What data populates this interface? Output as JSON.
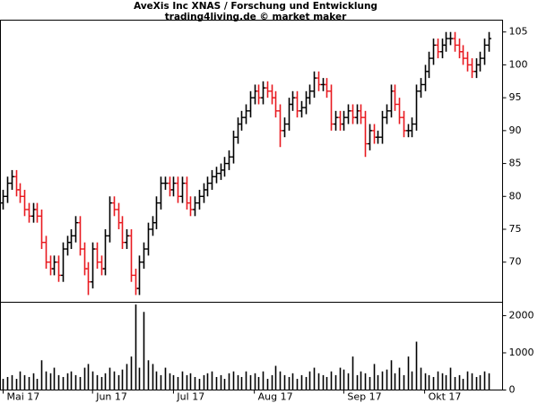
{
  "chart_data": [
    {
      "type": "ohlc",
      "title": "AveXis Inc XNAS / Forschung und Entwicklung",
      "subtitle": "trading4living.de © market maker",
      "up_color": "#000000",
      "down_color": "#e8191f",
      "xlim": [
        -0.63,
        117.3
      ],
      "ylim": [
        63.9,
        106.8
      ],
      "yticks": [
        70,
        75,
        80,
        85,
        90,
        95,
        100,
        105
      ],
      "open": [
        79,
        80,
        82,
        83,
        81,
        80,
        78,
        77,
        78,
        77,
        73,
        70,
        69,
        70,
        68,
        72,
        73,
        74,
        76,
        72,
        69,
        67,
        72,
        70,
        69,
        74,
        79,
        78,
        76,
        73,
        74,
        68,
        66,
        70,
        72,
        75,
        76,
        79,
        82,
        82,
        81,
        82,
        80,
        82,
        79,
        78,
        79,
        80,
        81,
        82,
        83,
        83.5,
        84,
        85,
        86,
        89,
        91,
        92,
        93,
        95,
        96,
        95,
        96.5,
        96,
        95,
        93,
        90,
        91,
        94,
        95,
        93,
        93.5,
        95,
        96,
        98,
        97,
        97,
        96,
        91,
        92,
        91,
        92,
        93,
        92,
        93,
        92,
        88,
        90,
        89,
        89,
        92,
        93,
        96,
        94,
        92,
        90,
        90,
        91,
        96,
        97,
        99,
        101,
        103,
        102,
        103,
        104,
        104,
        103,
        102,
        101,
        100,
        99,
        100,
        101,
        103
      ],
      "high": [
        81,
        83,
        84,
        84,
        82,
        81,
        79,
        79,
        79,
        78,
        74,
        71,
        71,
        71,
        73,
        74,
        75,
        77,
        77,
        73,
        70,
        73,
        73,
        71,
        75,
        80,
        80,
        79,
        77,
        75,
        75,
        69,
        71,
        73,
        76,
        77,
        80,
        83,
        83,
        83,
        83,
        83,
        83,
        83,
        80,
        80,
        81,
        82,
        83,
        84,
        84.5,
        85,
        86,
        87,
        90,
        92,
        93,
        94,
        96,
        97,
        97,
        97.5,
        97.5,
        97,
        96,
        94,
        92,
        95,
        96,
        96,
        94.5,
        96,
        97,
        99,
        99,
        98,
        98,
        97,
        93,
        93,
        93,
        94,
        94,
        94,
        94,
        93,
        91,
        91,
        90,
        93,
        94,
        97,
        97,
        95,
        93,
        91,
        92,
        97,
        98,
        100,
        102,
        104,
        104,
        104,
        105,
        105,
        105,
        104,
        103,
        102,
        101,
        101,
        102,
        104,
        105
      ],
      "low": [
        78,
        79,
        81,
        80,
        79,
        77,
        76,
        76,
        76,
        72,
        69,
        68,
        68,
        67,
        67,
        71,
        72,
        73,
        71,
        68,
        65,
        66,
        69,
        68,
        68,
        73,
        77,
        75,
        72,
        72,
        67,
        65,
        65,
        69,
        71,
        74,
        75,
        78,
        81,
        80,
        80,
        79,
        79,
        78,
        77,
        77,
        78,
        79,
        80,
        81,
        82,
        82.5,
        83,
        84,
        85,
        88,
        90,
        91,
        92,
        94,
        94,
        94,
        95,
        94,
        92,
        87.5,
        89,
        90,
        93,
        92,
        92,
        92.5,
        94,
        95,
        96,
        96,
        95,
        90,
        90,
        90,
        90,
        91,
        91,
        91,
        91,
        86,
        87,
        88,
        88,
        88,
        91,
        92,
        93,
        91,
        89,
        89,
        89,
        90,
        95,
        96,
        98,
        100,
        101,
        101,
        102,
        103,
        102,
        101,
        100,
        99,
        98,
        98,
        99,
        100,
        102
      ],
      "close": [
        80,
        82,
        83,
        81,
        80,
        78,
        77,
        78,
        77,
        73,
        70,
        69,
        70,
        68,
        72,
        73,
        74,
        76,
        72,
        69,
        67,
        72,
        70,
        69,
        74,
        79,
        78,
        76,
        73,
        74,
        68,
        66,
        70,
        72,
        75,
        76,
        79,
        82,
        82,
        81,
        82,
        80,
        82,
        79,
        78,
        79,
        80,
        81,
        82,
        83,
        83.5,
        84,
        85,
        86,
        89,
        91,
        92,
        93,
        95,
        96,
        95,
        96.5,
        96,
        95,
        93,
        90,
        91,
        94,
        95,
        93,
        93.5,
        95,
        96,
        98,
        97,
        97,
        96,
        91,
        92,
        91,
        92,
        93,
        92,
        93,
        92,
        88,
        90,
        89,
        89,
        92,
        93,
        96,
        94,
        92,
        90,
        90,
        91,
        96,
        97,
        99,
        101,
        103,
        102,
        103,
        104,
        104,
        103,
        102,
        101,
        100,
        99,
        100,
        101,
        103,
        104
      ]
    },
    {
      "type": "bar",
      "color": "#000000",
      "xlim": [
        -0.63,
        117.3
      ],
      "ylim": [
        0,
        2360
      ],
      "yticks": [
        0,
        1000,
        2000
      ],
      "xticks": [
        {
          "value": 0,
          "label": "Mai 17"
        },
        {
          "value": 21,
          "label": "Jun 17"
        },
        {
          "value": 40,
          "label": "Jul 17"
        },
        {
          "value": 59,
          "label": "Aug 17"
        },
        {
          "value": 80,
          "label": "Sep 17"
        },
        {
          "value": 99,
          "label": "Okt 17"
        }
      ],
      "values": [
        300,
        350,
        400,
        300,
        500,
        400,
        350,
        450,
        300,
        800,
        500,
        450,
        600,
        400,
        350,
        450,
        500,
        400,
        350,
        600,
        700,
        500,
        400,
        350,
        450,
        600,
        500,
        400,
        550,
        700,
        900,
        2300,
        600,
        2100,
        800,
        700,
        500,
        400,
        600,
        450,
        400,
        350,
        500,
        400,
        450,
        350,
        300,
        400,
        450,
        500,
        350,
        400,
        300,
        450,
        500,
        400,
        350,
        500,
        400,
        450,
        350,
        500,
        300,
        400,
        650,
        500,
        400,
        350,
        450,
        300,
        400,
        350,
        500,
        600,
        450,
        400,
        350,
        500,
        400,
        600,
        550,
        450,
        900,
        400,
        500,
        450,
        350,
        700,
        400,
        500,
        550,
        800,
        450,
        600,
        400,
        900,
        500,
        1300,
        600,
        450,
        400,
        350,
        500,
        450,
        400,
        600,
        350,
        400,
        300,
        500,
        450,
        350,
        400,
        500,
        450
      ]
    }
  ]
}
